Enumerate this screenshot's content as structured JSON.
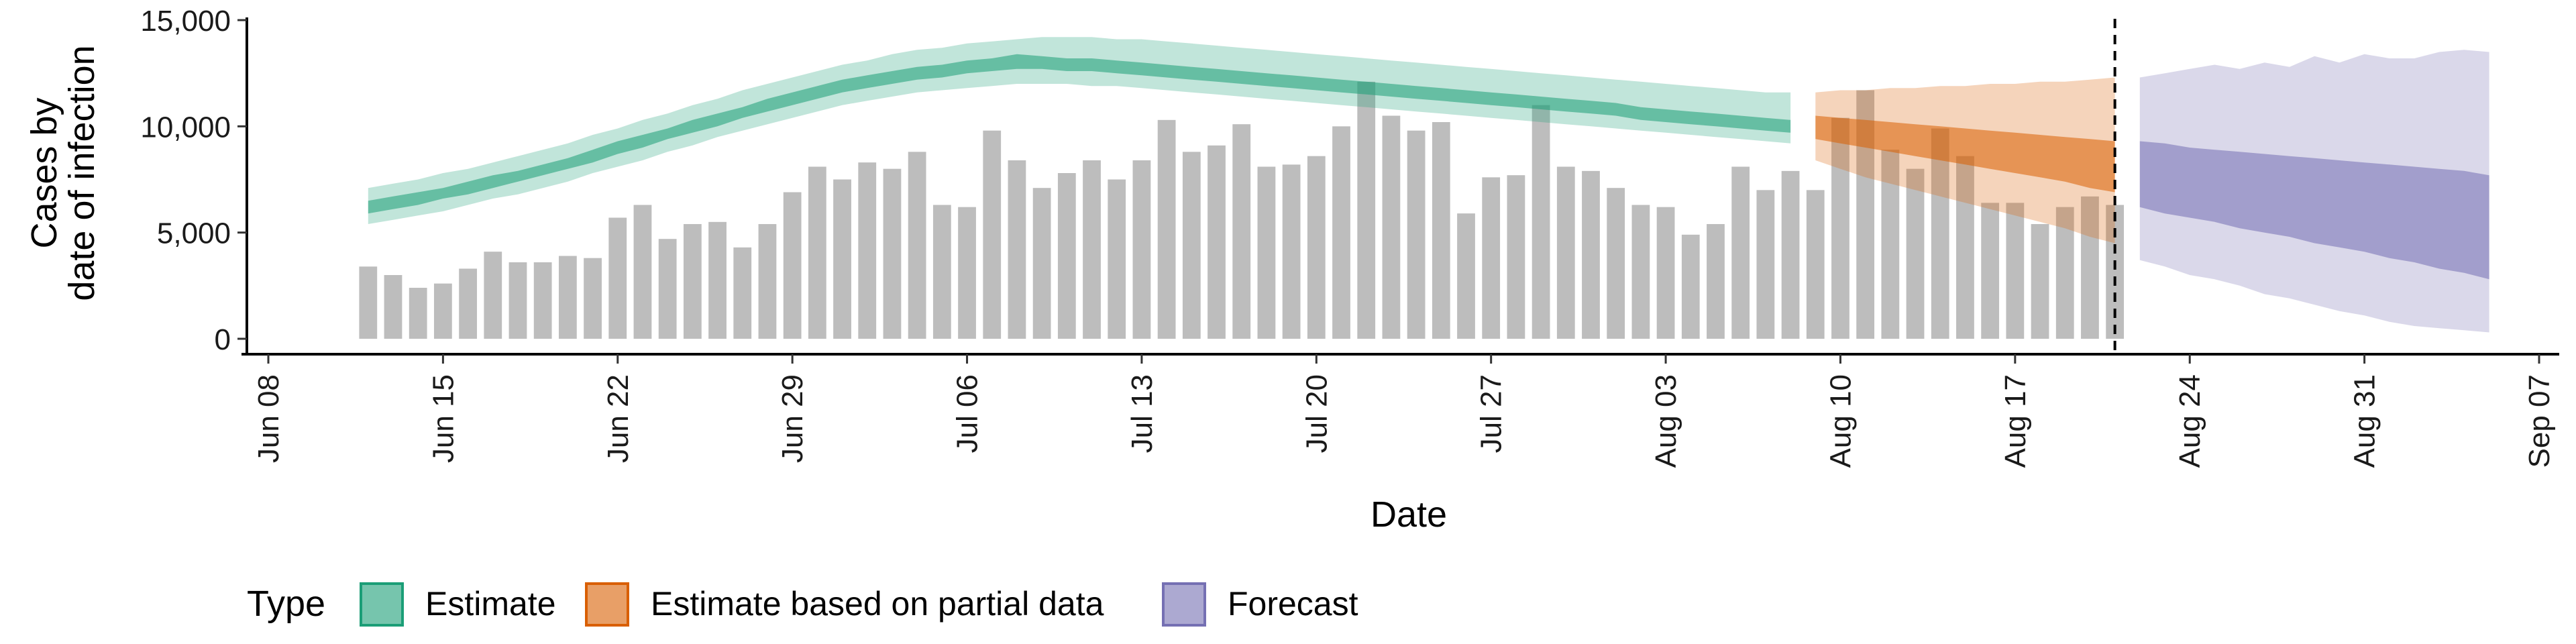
{
  "chart_data": {
    "type": "bar+ribbon",
    "xlabel": "Date",
    "ylabel_lines": [
      "Cases by",
      "date of infection"
    ],
    "x_ticks": [
      "Jun 08",
      "Jun 15",
      "Jun 22",
      "Jun 29",
      "Jul 06",
      "Jul 13",
      "Jul 20",
      "Jul 27",
      "Aug 03",
      "Aug 10",
      "Aug 17",
      "Aug 24",
      "Aug 31",
      "Sep 07"
    ],
    "y_ticks": [
      "0",
      "5,000",
      "10,000",
      "15,000"
    ],
    "y_tick_values": [
      0,
      5000,
      10000,
      15000
    ],
    "xlim_days_from_jun08": [
      0,
      91
    ],
    "ylim": [
      0,
      15000
    ],
    "bar_start_date": "Jun 12",
    "bar_color": "#bdbdbd",
    "bars": [
      3400,
      3000,
      2400,
      2600,
      3300,
      4100,
      3600,
      3600,
      3900,
      3800,
      5700,
      6300,
      4700,
      5400,
      5500,
      4300,
      5400,
      6900,
      8100,
      7500,
      8300,
      8000,
      8800,
      6300,
      6200,
      9800,
      8400,
      7100,
      7800,
      8400,
      7500,
      8400,
      10300,
      8800,
      9100,
      10100,
      8100,
      8200,
      8600,
      10000,
      12100,
      10500,
      9800,
      10200,
      5900,
      7600,
      7700,
      11000,
      8100,
      7900,
      7100,
      6300,
      6200,
      4900,
      5400,
      8100,
      7000,
      7900,
      7000,
      10400,
      11700,
      8900,
      8000,
      9900,
      8600,
      6400,
      6400,
      5400,
      6200,
      6700,
      6300
    ],
    "vline_date": "Aug 21",
    "legend_title": "Type",
    "series": [
      {
        "name": "Estimate",
        "color": "#1b9e77",
        "start_date": "Jun 12",
        "median_upper": [
          6500,
          6700,
          6900,
          7100,
          7400,
          7700,
          7900,
          8200,
          8500,
          8900,
          9300,
          9600,
          9900,
          10300,
          10600,
          10900,
          11300,
          11600,
          11900,
          12200,
          12400,
          12600,
          12800,
          12900,
          13100,
          13200,
          13400,
          13300,
          13200,
          13200,
          13100,
          13000,
          12900,
          12800,
          12700,
          12600,
          12500,
          12400,
          12300,
          12200,
          12100,
          12000,
          11900,
          11800,
          11700,
          11600,
          11500,
          11400,
          11300,
          11200,
          11100,
          10900,
          10800,
          10700,
          10600,
          10500,
          10400,
          10300
        ],
        "median_lower": [
          5900,
          6100,
          6300,
          6600,
          6800,
          7100,
          7400,
          7700,
          8000,
          8300,
          8700,
          9000,
          9400,
          9700,
          10000,
          10400,
          10700,
          11000,
          11300,
          11600,
          11800,
          12000,
          12200,
          12300,
          12500,
          12600,
          12700,
          12700,
          12600,
          12600,
          12500,
          12400,
          12300,
          12200,
          12100,
          12000,
          11900,
          11800,
          11700,
          11600,
          11500,
          11400,
          11300,
          11200,
          11100,
          11000,
          10900,
          10800,
          10700,
          10600,
          10500,
          10300,
          10200,
          10100,
          10000,
          9900,
          9800,
          9700
        ],
        "interval_upper": [
          7100,
          7300,
          7500,
          7800,
          8000,
          8300,
          8600,
          8900,
          9200,
          9600,
          9900,
          10300,
          10600,
          11000,
          11300,
          11700,
          12000,
          12300,
          12600,
          12900,
          13100,
          13400,
          13600,
          13700,
          13900,
          14000,
          14100,
          14200,
          14200,
          14200,
          14100,
          14100,
          14000,
          13900,
          13800,
          13700,
          13600,
          13500,
          13400,
          13300,
          13200,
          13100,
          13000,
          12900,
          12800,
          12700,
          12600,
          12500,
          12400,
          12300,
          12200,
          12100,
          12000,
          11900,
          11800,
          11700,
          11600,
          11600
        ],
        "interval_lower": [
          5400,
          5600,
          5800,
          6000,
          6300,
          6600,
          6800,
          7100,
          7400,
          7800,
          8100,
          8400,
          8800,
          9100,
          9500,
          9800,
          10100,
          10400,
          10700,
          11000,
          11200,
          11400,
          11600,
          11700,
          11800,
          11900,
          12000,
          12000,
          12000,
          11900,
          11900,
          11800,
          11700,
          11600,
          11500,
          11400,
          11300,
          11200,
          11100,
          11000,
          10900,
          10800,
          10700,
          10600,
          10500,
          10400,
          10300,
          10200,
          10100,
          10000,
          9900,
          9800,
          9700,
          9600,
          9500,
          9400,
          9300,
          9200
        ]
      },
      {
        "name": "Estimate based on partial data",
        "color": "#d95f02",
        "start_date": "Aug 09",
        "median_upper": [
          10500,
          10400,
          10300,
          10200,
          10100,
          10000,
          9900,
          9800,
          9700,
          9600,
          9500,
          9400,
          9300
        ],
        "median_lower": [
          9400,
          9200,
          9000,
          8800,
          8600,
          8400,
          8200,
          8000,
          7800,
          7600,
          7400,
          7100,
          6900
        ],
        "interval_upper": [
          11600,
          11700,
          11700,
          11800,
          11800,
          11900,
          11900,
          12000,
          12000,
          12100,
          12100,
          12200,
          12300
        ],
        "interval_lower": [
          8400,
          8000,
          7600,
          7300,
          7000,
          6700,
          6400,
          6100,
          5800,
          5500,
          5200,
          4800,
          4500
        ]
      },
      {
        "name": "Forecast",
        "color": "#7570b3",
        "start_date": "Aug 22",
        "median_upper": [
          9300,
          9200,
          9000,
          8900,
          8800,
          8700,
          8600,
          8500,
          8400,
          8300,
          8200,
          8100,
          8000,
          7900,
          7700
        ],
        "median_lower": [
          6200,
          5900,
          5700,
          5500,
          5200,
          5000,
          4800,
          4500,
          4300,
          4100,
          3800,
          3600,
          3300,
          3100,
          2800
        ],
        "interval_upper": [
          12300,
          12500,
          12700,
          12900,
          12700,
          13000,
          12800,
          13300,
          13000,
          13400,
          13200,
          13200,
          13500,
          13600,
          13500
        ],
        "interval_lower": [
          3700,
          3400,
          3000,
          2800,
          2500,
          2100,
          1900,
          1600,
          1300,
          1100,
          800,
          600,
          500,
          400,
          300
        ]
      }
    ]
  }
}
